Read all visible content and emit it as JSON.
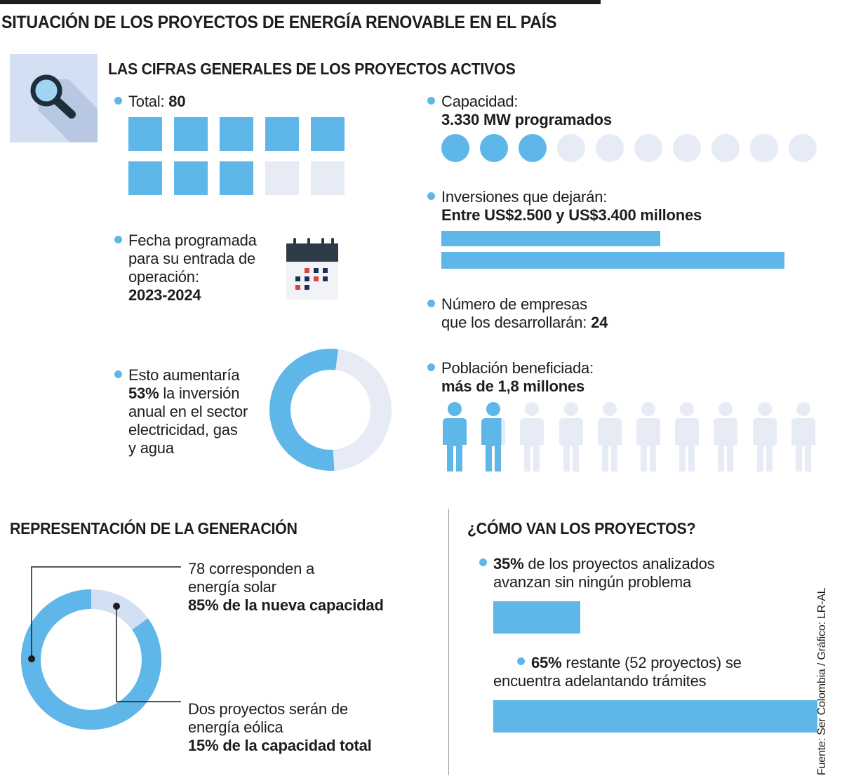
{
  "title": "SITUACIÓN DE LOS PROYECTOS DE ENERGÍA RENOVABLE EN EL PAÍS",
  "source": "Fuente: Ser Colombia / Gráfico: LR-AL",
  "colors": {
    "accent": "#5fb6e8",
    "inactive": "#e6ebf5",
    "text": "#1d1d1b",
    "icon_bg": "#d3dff2"
  },
  "general": {
    "heading": "LAS CIFRAS GENERALES DE LOS PROYECTOS ACTIVOS",
    "icon": "search-icon",
    "total": {
      "label": "Total: ",
      "value": "80",
      "filled": 8,
      "count": 10
    },
    "fecha": {
      "line1": "Fecha programada",
      "line2": "para su entrada de",
      "line3": "operación:",
      "value": "2023-2024",
      "icon": "calendar-icon"
    },
    "inversion": {
      "line1": "Esto aumentaría",
      "value": "53%",
      "line2": " la inversión",
      "line3": "anual en el sector",
      "line4": "electricidad, gas",
      "line5": "y agua",
      "fraction": 0.53
    },
    "capacidad": {
      "label": "Capacidad:",
      "value": "3.330 MW programados",
      "filled": 3,
      "count": 10
    },
    "inversiones": {
      "label": "Inversiones que dejarán:",
      "value": "Entre US$2.500 y US$3.400 millones",
      "min": 2500,
      "max": 3400
    },
    "empresas": {
      "line1": "Número de empresas",
      "line2": "que los desarrollarán: ",
      "value": "24"
    },
    "poblacion": {
      "label": "Población beneficiada:",
      "value": "más de 1,8 millones",
      "filled": 1.8,
      "count": 10
    }
  },
  "generacion": {
    "heading": "REPRESENTACIÓN DE LA GENERACIÓN",
    "solar": {
      "line1": "78 corresponden a",
      "line2": "energía solar",
      "value": "85% de la nueva capacidad",
      "percent": 85
    },
    "eolica": {
      "line1": "Dos proyectos serán de",
      "line2": "energía eólica",
      "value": "15% de la capacidad total",
      "percent": 15
    }
  },
  "avance": {
    "heading": "¿CÓMO VAN LOS PROYECTOS?",
    "item1": {
      "value": "35%",
      "line1": " de los proyectos analizados",
      "line2": "avanzan sin ningún problema",
      "percent": 35
    },
    "item2": {
      "value": "65%",
      "line1": " restante (52 proyectos) se",
      "line2": "encuentra adelantando trámites",
      "percent": 65
    }
  },
  "chart_data": [
    {
      "type": "bar",
      "title": "Inversiones que dejarán",
      "values": [
        2500,
        3400
      ],
      "unit": "US$ millones"
    },
    {
      "type": "pie",
      "categories": [
        "Solar",
        "Eólica"
      ],
      "values": [
        85,
        15
      ]
    },
    {
      "type": "bar",
      "title": "¿CÓMO VAN LOS PROYECTOS?",
      "values": [
        35,
        65
      ],
      "unit": "%"
    }
  ]
}
